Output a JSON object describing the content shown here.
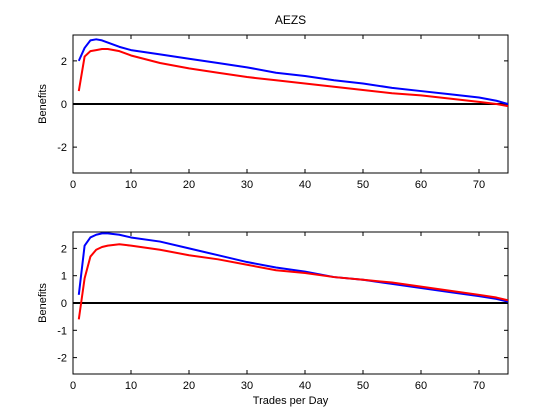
{
  "chart_data": [
    {
      "type": "line",
      "title": "AEZS",
      "xlabel": "",
      "ylabel": "Benefits",
      "xlim": [
        0,
        75
      ],
      "ylim": [
        -3.2,
        3.2
      ],
      "xticks": [
        0,
        10,
        20,
        30,
        40,
        50,
        60,
        70
      ],
      "yticks": [
        -2,
        0,
        2
      ],
      "hline": 0,
      "series": [
        {
          "color": "#0000ff",
          "x": [
            1,
            2,
            3,
            4,
            5,
            6,
            8,
            10,
            15,
            20,
            25,
            30,
            35,
            40,
            45,
            50,
            55,
            60,
            65,
            70,
            73,
            75
          ],
          "y": [
            2.0,
            2.6,
            2.95,
            3.0,
            2.95,
            2.85,
            2.65,
            2.5,
            2.3,
            2.1,
            1.9,
            1.7,
            1.45,
            1.3,
            1.1,
            0.95,
            0.75,
            0.6,
            0.45,
            0.3,
            0.15,
            0.0
          ]
        },
        {
          "color": "#ff0000",
          "x": [
            1,
            2,
            3,
            4,
            5,
            6,
            8,
            10,
            15,
            20,
            25,
            30,
            35,
            40,
            45,
            50,
            55,
            60,
            65,
            70,
            73,
            75
          ],
          "y": [
            0.6,
            2.2,
            2.45,
            2.5,
            2.55,
            2.55,
            2.45,
            2.25,
            1.9,
            1.65,
            1.45,
            1.25,
            1.1,
            0.95,
            0.8,
            0.65,
            0.5,
            0.4,
            0.25,
            0.1,
            0.0,
            -0.1
          ]
        }
      ]
    },
    {
      "type": "line",
      "title": "",
      "xlabel": "Trades per Day",
      "ylabel": "Benefits",
      "xlim": [
        0,
        75
      ],
      "ylim": [
        -2.6,
        2.6
      ],
      "xticks": [
        0,
        10,
        20,
        30,
        40,
        50,
        60,
        70
      ],
      "yticks": [
        -2,
        -1,
        0,
        1,
        2
      ],
      "hline": 0,
      "series": [
        {
          "color": "#0000ff",
          "x": [
            1,
            2,
            3,
            4,
            5,
            6,
            8,
            10,
            15,
            20,
            25,
            30,
            35,
            40,
            45,
            50,
            55,
            60,
            65,
            70,
            73,
            75
          ],
          "y": [
            0.3,
            2.1,
            2.4,
            2.5,
            2.55,
            2.55,
            2.5,
            2.4,
            2.25,
            2.0,
            1.75,
            1.5,
            1.3,
            1.15,
            0.95,
            0.85,
            0.7,
            0.55,
            0.4,
            0.25,
            0.15,
            0.05
          ]
        },
        {
          "color": "#ff0000",
          "x": [
            1,
            2,
            3,
            4,
            5,
            6,
            8,
            10,
            15,
            20,
            25,
            30,
            35,
            40,
            45,
            50,
            55,
            60,
            65,
            70,
            73,
            75
          ],
          "y": [
            -0.6,
            0.9,
            1.7,
            1.95,
            2.05,
            2.1,
            2.15,
            2.1,
            1.95,
            1.75,
            1.6,
            1.4,
            1.2,
            1.1,
            0.95,
            0.85,
            0.75,
            0.6,
            0.45,
            0.3,
            0.2,
            0.1
          ]
        }
      ]
    }
  ]
}
